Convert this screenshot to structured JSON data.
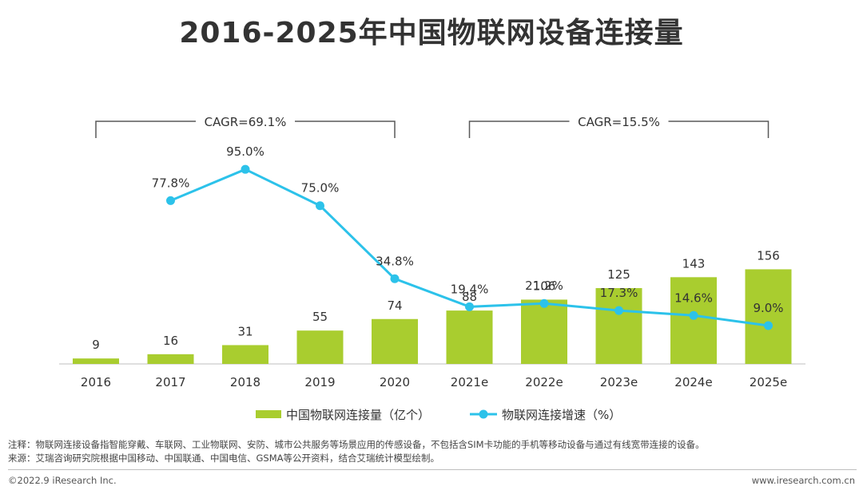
{
  "title": "2016-2025年中国物联网设备连接量",
  "chart_data": {
    "type": "bar+line",
    "categories": [
      "2016",
      "2017",
      "2018",
      "2019",
      "2020",
      "2021e",
      "2022e",
      "2023e",
      "2024e",
      "2025e"
    ],
    "series": [
      {
        "name": "中国物联网连接量（亿个）",
        "type": "bar",
        "color": "#a9cd2f",
        "values": [
          9,
          16,
          31,
          55,
          74,
          88,
          106,
          125,
          143,
          156
        ],
        "labels": [
          "9",
          "16",
          "31",
          "55",
          "74",
          "88",
          "106",
          "125",
          "143",
          "156"
        ]
      },
      {
        "name": "物联网连接增速（%）",
        "type": "line",
        "color": "#2cc2ea",
        "values": [
          null,
          77.8,
          95.0,
          75.0,
          34.8,
          19.4,
          21.2,
          17.3,
          14.6,
          9.0
        ],
        "labels": [
          "",
          "77.8%",
          "95.0%",
          "75.0%",
          "34.8%",
          "19.4%",
          "21.2%",
          "17.3%",
          "14.6%",
          "9.0%"
        ]
      }
    ],
    "annotations": [
      {
        "text": "CAGR=69.1%",
        "from": "2016",
        "to": "2020"
      },
      {
        "text": "CAGR=15.5%",
        "from": "2021e",
        "to": "2025e"
      }
    ],
    "bar_ylim": [
      0,
      300
    ],
    "line_ylim": [
      0,
      100
    ],
    "xlabel": "",
    "ylabel": "",
    "grid": false,
    "legend_position": "bottom"
  },
  "notes": {
    "note": "注释：物联网连接设备指智能穿戴、车联网、工业物联网、安防、城市公共服务等场景应用的传感设备，不包括含SIM卡功能的手机等移动设备与通过有线宽带连接的设备。",
    "source": "来源：艾瑞咨询研究院根据中国移动、中国联通、中国电信、GSMA等公开资料，结合艾瑞统计模型绘制。"
  },
  "footer": {
    "copyright": "©2022.9 iResearch Inc.",
    "website": "www.iresearch.com.cn"
  }
}
